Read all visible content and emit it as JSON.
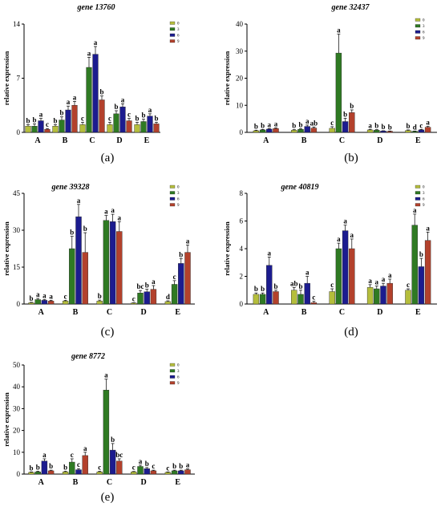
{
  "legend_labels": [
    "0",
    "3",
    "6",
    "9"
  ],
  "ylabel": "relative expression",
  "colors": [
    "#b5be3c",
    "#2f7a23",
    "#1c1c8f",
    "#b3412c"
  ],
  "chart_data": [
    {
      "type": "bar",
      "title": "gene 13760",
      "caption": "(a)",
      "categories": [
        "A",
        "B",
        "C",
        "D",
        "E"
      ],
      "ylim": [
        0,
        14
      ],
      "yticks": [
        0,
        7,
        14
      ],
      "series": [
        {
          "name": "0",
          "values": [
            0.8,
            0.8,
            1.0,
            1.0,
            1.0
          ],
          "errors": [
            0.2,
            0.2,
            0.3,
            0.3,
            0.3
          ],
          "labels": [
            "b",
            "b",
            "c",
            "c",
            "b"
          ]
        },
        {
          "name": "3",
          "values": [
            0.8,
            1.6,
            8.4,
            2.4,
            1.4
          ],
          "errors": [
            0.3,
            0.4,
            1.3,
            0.4,
            0.3
          ],
          "labels": [
            "b",
            "b",
            "a",
            "b",
            "b"
          ]
        },
        {
          "name": "6",
          "values": [
            1.5,
            2.9,
            10.1,
            3.3,
            2.1
          ],
          "errors": [
            0.3,
            0.5,
            1.0,
            0.4,
            0.3
          ],
          "labels": [
            "a",
            "a",
            "a",
            "a",
            "a"
          ]
        },
        {
          "name": "9",
          "values": [
            0.4,
            3.5,
            4.2,
            1.5,
            1.1
          ],
          "errors": [
            0.1,
            0.5,
            0.5,
            0.3,
            0.2
          ],
          "labels": [
            "c",
            "a",
            "b",
            "c",
            "b"
          ]
        }
      ]
    },
    {
      "type": "bar",
      "title": "gene 32437",
      "caption": "(b)",
      "categories": [
        "A",
        "B",
        "C",
        "D",
        "E"
      ],
      "ylim": [
        0,
        40
      ],
      "yticks": [
        0,
        10,
        20,
        30,
        40
      ],
      "series": [
        {
          "name": "0",
          "values": [
            0.6,
            0.8,
            1.5,
            0.9,
            0.7
          ],
          "errors": [
            0.2,
            0.2,
            0.6,
            0.2,
            0.2
          ],
          "labels": [
            "b",
            "b",
            "c",
            "a",
            "b"
          ]
        },
        {
          "name": "3",
          "values": [
            0.9,
            1.1,
            29.3,
            0.8,
            0.4
          ],
          "errors": [
            0.2,
            0.3,
            7.0,
            0.2,
            0.1
          ],
          "labels": [
            "b",
            "b",
            "a",
            "b",
            "d"
          ]
        },
        {
          "name": "6",
          "values": [
            1.2,
            2.2,
            4.0,
            0.5,
            0.9
          ],
          "errors": [
            0.2,
            0.5,
            1.2,
            0.1,
            0.2
          ],
          "labels": [
            "a",
            "a",
            "b",
            "b",
            "c"
          ]
        },
        {
          "name": "9",
          "values": [
            1.4,
            1.6,
            7.3,
            0.4,
            1.9
          ],
          "errors": [
            0.3,
            0.4,
            1.0,
            0.1,
            0.3
          ],
          "labels": [
            "a",
            "ab",
            "b",
            "b",
            "a"
          ]
        }
      ]
    },
    {
      "type": "bar",
      "title": "gene 39328",
      "caption": "(c)",
      "categories": [
        "A",
        "B",
        "C",
        "D",
        "E"
      ],
      "ylim": [
        0,
        45
      ],
      "yticks": [
        0,
        15,
        30,
        45
      ],
      "series": [
        {
          "name": "0",
          "values": [
            0.5,
            1.2,
            1.2,
            0.4,
            1.0
          ],
          "errors": [
            0.2,
            0.3,
            0.4,
            0.1,
            0.3
          ],
          "labels": [
            "b",
            "c",
            "b",
            "c",
            "d"
          ]
        },
        {
          "name": "3",
          "values": [
            1.8,
            22.5,
            34.0,
            4.5,
            8.0
          ],
          "errors": [
            0.5,
            5.0,
            2.0,
            1.0,
            1.5
          ],
          "labels": [
            "a",
            "b",
            "a",
            "bc",
            "c"
          ]
        },
        {
          "name": "6",
          "values": [
            1.5,
            35.5,
            33.5,
            5.0,
            16.5
          ],
          "errors": [
            0.3,
            5.0,
            3.0,
            1.0,
            2.0
          ],
          "labels": [
            "a",
            "a",
            "a",
            "b",
            "b"
          ]
        },
        {
          "name": "9",
          "values": [
            1.2,
            21.0,
            29.5,
            6.0,
            21.0
          ],
          "errors": [
            0.3,
            8.0,
            4.0,
            1.5,
            3.0
          ],
          "labels": [
            "a",
            "b",
            "a",
            "a",
            "a"
          ]
        }
      ]
    },
    {
      "type": "bar",
      "title": "gene 40819",
      "caption": "(d)",
      "categories": [
        "A",
        "B",
        "C",
        "D",
        "E"
      ],
      "ylim": [
        0,
        8
      ],
      "yticks": [
        0,
        2,
        4,
        6,
        8
      ],
      "series": [
        {
          "name": "0",
          "values": [
            0.7,
            1.0,
            0.9,
            1.2,
            1.0
          ],
          "errors": [
            0.1,
            0.2,
            0.2,
            0.2,
            0.1
          ],
          "labels": [
            "b",
            "ab",
            "c",
            "a",
            "c"
          ]
        },
        {
          "name": "3",
          "values": [
            0.7,
            0.7,
            4.0,
            1.1,
            5.7
          ],
          "errors": [
            0.1,
            0.3,
            0.4,
            0.2,
            0.8
          ],
          "labels": [
            "b",
            "b",
            "a",
            "a",
            "a"
          ]
        },
        {
          "name": "6",
          "values": [
            2.8,
            1.5,
            5.3,
            1.3,
            2.7
          ],
          "errors": [
            0.6,
            0.5,
            0.4,
            0.2,
            0.6
          ],
          "labels": [
            "a",
            "a",
            "a",
            "a",
            "b"
          ]
        },
        {
          "name": "9",
          "values": [
            0.9,
            0.1,
            4.0,
            1.5,
            4.6
          ],
          "errors": [
            0.1,
            0.1,
            0.7,
            0.3,
            0.6
          ],
          "labels": [
            "b",
            "c",
            "a",
            "a",
            "a"
          ]
        }
      ]
    },
    {
      "type": "bar",
      "title": "gene 8772",
      "caption": "(e)",
      "categories": [
        "A",
        "B",
        "C",
        "D",
        "E"
      ],
      "ylim": [
        0,
        50
      ],
      "yticks": [
        0,
        10,
        20,
        30,
        40,
        50
      ],
      "series": [
        {
          "name": "0",
          "values": [
            0.8,
            1.0,
            1.0,
            1.0,
            0.8
          ],
          "errors": [
            0.2,
            0.3,
            0.3,
            0.2,
            0.2
          ],
          "labels": [
            "b",
            "b",
            "c",
            "c",
            "c"
          ]
        },
        {
          "name": "3",
          "values": [
            1.0,
            5.5,
            38.5,
            3.5,
            1.5
          ],
          "errors": [
            0.3,
            1.5,
            5.0,
            0.6,
            0.3
          ],
          "labels": [
            "b",
            "c",
            "a",
            "a",
            "b"
          ]
        },
        {
          "name": "6",
          "values": [
            6.0,
            2.0,
            11.0,
            2.5,
            1.5
          ],
          "errors": [
            1.0,
            0.5,
            3.0,
            0.5,
            0.3
          ],
          "labels": [
            "a",
            "c",
            "b",
            "b",
            "b"
          ]
        },
        {
          "name": "9",
          "values": [
            1.5,
            8.5,
            6.0,
            1.5,
            2.0
          ],
          "errors": [
            0.3,
            1.5,
            1.0,
            0.3,
            0.4
          ],
          "labels": [
            "b",
            "a",
            "bc",
            "c",
            "a"
          ]
        }
      ]
    }
  ]
}
